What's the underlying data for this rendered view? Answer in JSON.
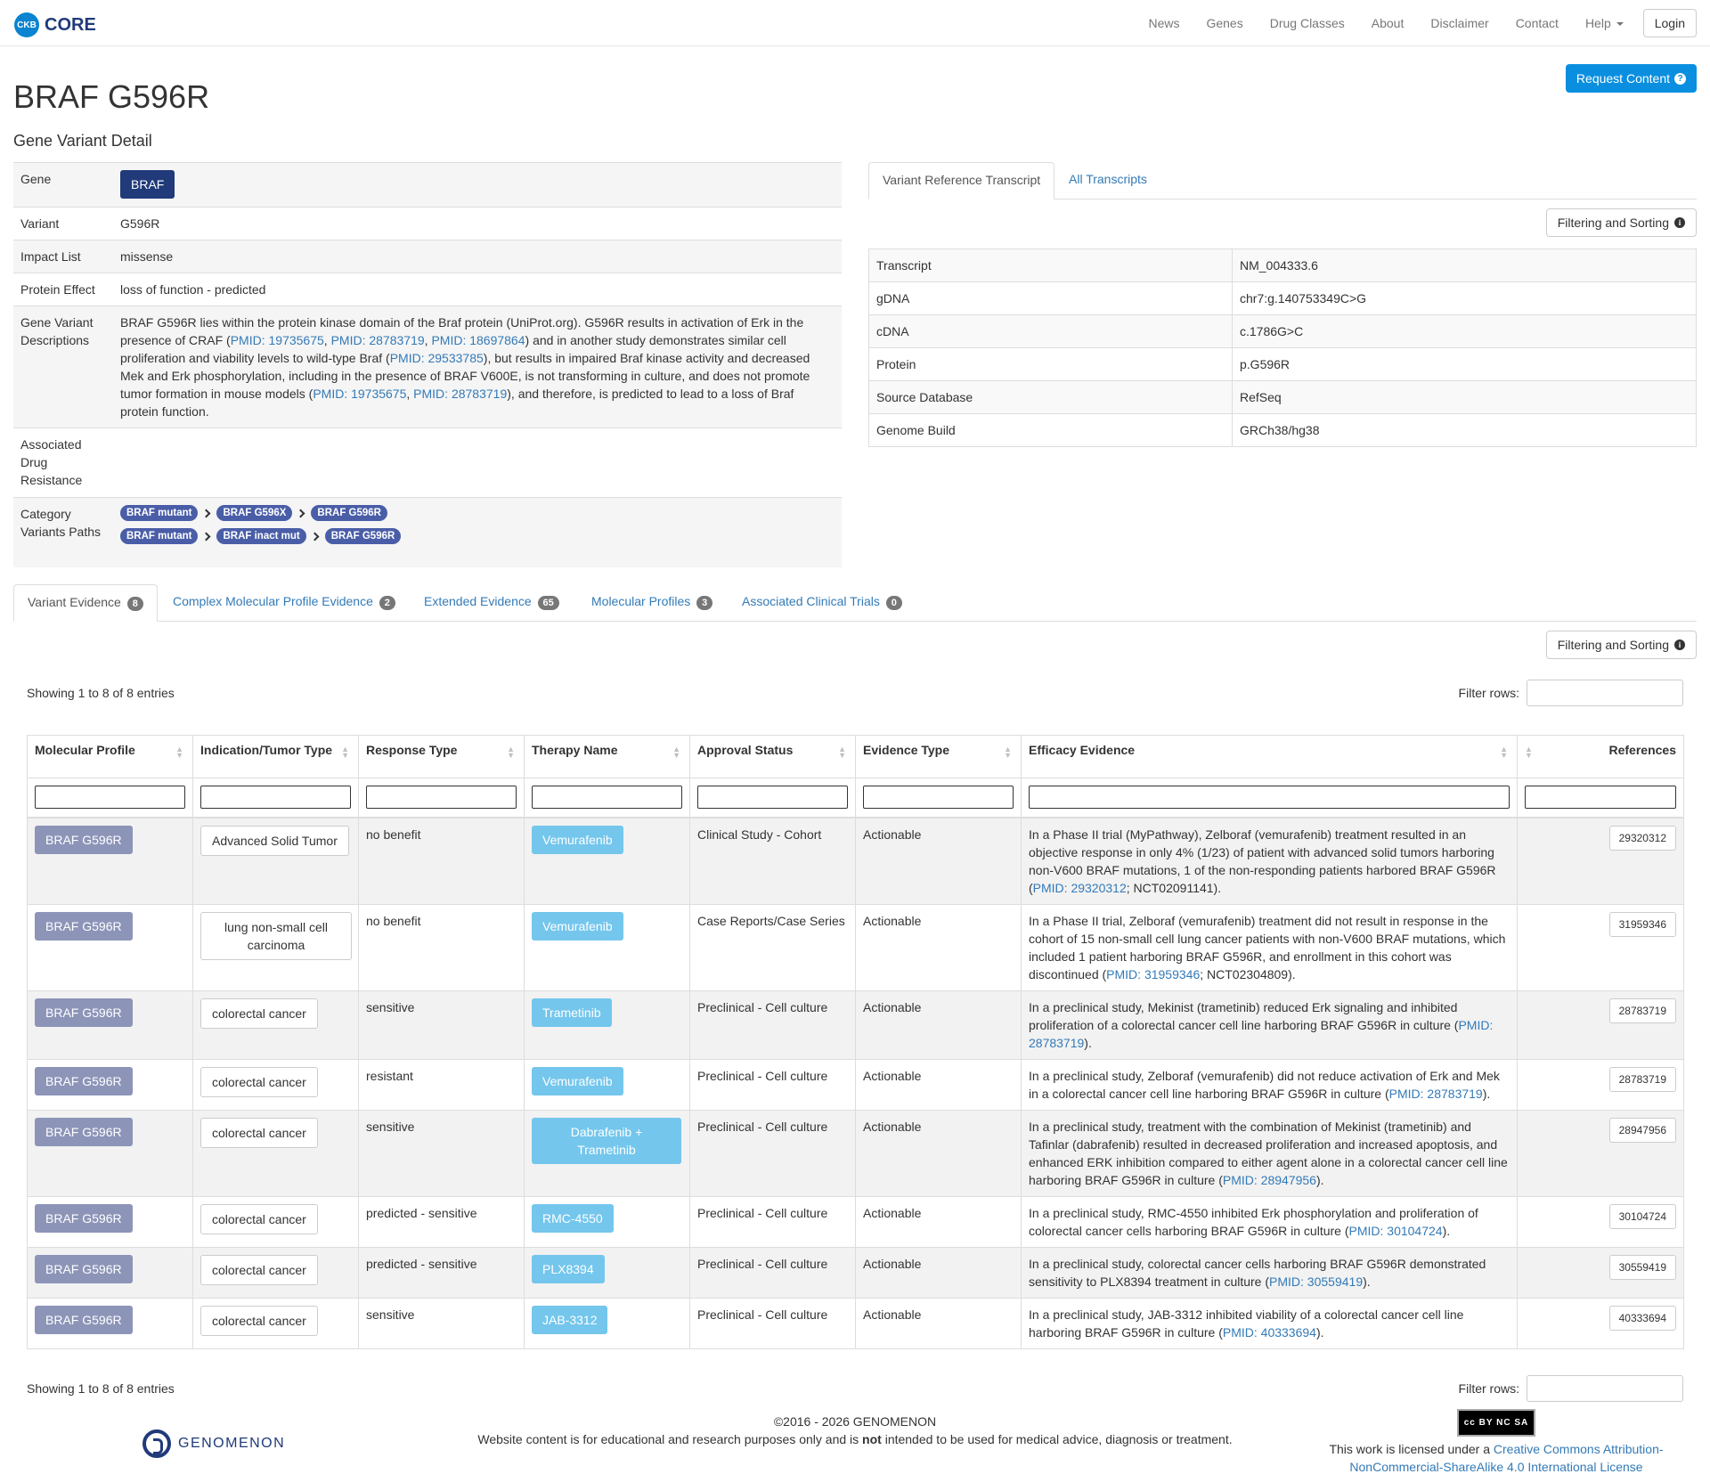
{
  "nav": {
    "logo_short": "CKB",
    "logo_text": "CORE",
    "items": [
      "News",
      "Genes",
      "Drug Classes",
      "About",
      "Disclaimer",
      "Contact",
      "Help"
    ],
    "login": "Login"
  },
  "header": {
    "title": "BRAF G596R",
    "subtitle": "Gene Variant Detail",
    "request_btn": "Request Content"
  },
  "detail": {
    "gene_label": "Gene",
    "gene_value": "BRAF",
    "variant_label": "Variant",
    "variant_value": "G596R",
    "impact_label": "Impact List",
    "impact_value": "missense",
    "protein_label": "Protein Effect",
    "protein_value": "loss of function - predicted",
    "desc_label": "Gene Variant Descriptions",
    "desc_parts": [
      "BRAF G596R lies within the protein kinase domain of the Braf protein (UniProt.org). G596R results in activation of Erk in the presence of CRAF (",
      "PMID: 19735675",
      ", ",
      "PMID: 28783719",
      ", ",
      "PMID: 18697864",
      ") and in another study demonstrates similar cell proliferation and viability levels to wild-type Braf (",
      "PMID: 29533785",
      "), but results in impaired Braf kinase activity and decreased Mek and Erk phosphorylation, including in the presence of BRAF V600E, is not transforming in culture, and does not promote tumor formation in mouse models (",
      "PMID: 19735675",
      ", ",
      "PMID: 28783719",
      "), and therefore, is predicted to lead to a loss of Braf protein function."
    ],
    "resistance_label": "Associated Drug Resistance",
    "category_label": "Category Variants Paths",
    "paths": [
      [
        "BRAF mutant",
        "BRAF G596X",
        "BRAF G596R"
      ],
      [
        "BRAF mutant",
        "BRAF inact mut",
        "BRAF G596R"
      ]
    ]
  },
  "transcript": {
    "tab_active": "Variant Reference Transcript",
    "tab_other": "All Transcripts",
    "filter_btn": "Filtering and Sorting",
    "rows": [
      {
        "label": "Transcript",
        "value": "NM_004333.6"
      },
      {
        "label": "gDNA",
        "value": "chr7:g.140753349C>G"
      },
      {
        "label": "cDNA",
        "value": "c.1786G>C"
      },
      {
        "label": "Protein",
        "value": "p.G596R"
      },
      {
        "label": "Source Database",
        "value": "RefSeq"
      },
      {
        "label": "Genome Build",
        "value": "GRCh38/hg38"
      }
    ]
  },
  "evidence_tabs": [
    {
      "label": "Variant Evidence",
      "count": "8"
    },
    {
      "label": "Complex Molecular Profile Evidence",
      "count": "2"
    },
    {
      "label": "Extended Evidence",
      "count": "65"
    },
    {
      "label": "Molecular Profiles",
      "count": "3"
    },
    {
      "label": "Associated Clinical Trials",
      "count": "0"
    }
  ],
  "evidence": {
    "filter_btn": "Filtering and Sorting",
    "showing": "Showing 1 to 8 of 8 entries",
    "filter_rows_label": "Filter rows:",
    "columns": [
      "Molecular Profile",
      "Indication/Tumor Type",
      "Response Type",
      "Therapy Name",
      "Approval Status",
      "Evidence Type",
      "Efficacy Evidence",
      "References"
    ],
    "rows": [
      {
        "mp": "BRAF G596R",
        "ind": "Advanced Solid Tumor",
        "resp": "no benefit",
        "therapy": "Vemurafenib",
        "approval": "Clinical Study - Cohort",
        "etype": "Actionable",
        "eff": [
          "In a Phase II trial (MyPathway), Zelboraf (vemurafenib) treatment resulted in an objective response in only 4% (1/23) of patient with advanced solid tumors harboring non-V600 BRAF mutations, 1 of the non-responding patients harbored BRAF G596R (",
          "PMID: 29320312",
          "; NCT02091141)."
        ],
        "ref": "29320312"
      },
      {
        "mp": "BRAF G596R",
        "ind": "lung non-small cell carcinoma",
        "resp": "no benefit",
        "therapy": "Vemurafenib",
        "approval": "Case Reports/Case Series",
        "etype": "Actionable",
        "eff": [
          "In a Phase II trial, Zelboraf (vemurafenib) treatment did not result in response in the cohort of 15 non-small cell lung cancer patients with non-V600 BRAF mutations, which included 1 patient harboring BRAF G596R, and enrollment in this cohort was discontinued (",
          "PMID: 31959346",
          "; NCT02304809)."
        ],
        "ref": "31959346"
      },
      {
        "mp": "BRAF G596R",
        "ind": "colorectal cancer",
        "resp": "sensitive",
        "therapy": "Trametinib",
        "approval": "Preclinical - Cell culture",
        "etype": "Actionable",
        "eff": [
          "In a preclinical study, Mekinist (trametinib) reduced Erk signaling and inhibited proliferation of a colorectal cancer cell line harboring BRAF G596R in culture (",
          "PMID: 28783719",
          ")."
        ],
        "ref": "28783719"
      },
      {
        "mp": "BRAF G596R",
        "ind": "colorectal cancer",
        "resp": "resistant",
        "therapy": "Vemurafenib",
        "approval": "Preclinical - Cell culture",
        "etype": "Actionable",
        "eff": [
          "In a preclinical study, Zelboraf (vemurafenib) did not reduce activation of Erk and Mek in a colorectal cancer cell line harboring BRAF G596R in culture (",
          "PMID: 28783719",
          ")."
        ],
        "ref": "28783719"
      },
      {
        "mp": "BRAF G596R",
        "ind": "colorectal cancer",
        "resp": "sensitive",
        "therapy": "Dabrafenib + Trametinib",
        "approval": "Preclinical - Cell culture",
        "etype": "Actionable",
        "eff": [
          "In a preclinical study, treatment with the combination of Mekinist (trametinib) and Tafinlar (dabrafenib) resulted in decreased proliferation and increased apoptosis, and enhanced ERK inhibition compared to either agent alone in a colorectal cancer cell line harboring BRAF G596R in culture (",
          "PMID: 28947956",
          ")."
        ],
        "ref": "28947956"
      },
      {
        "mp": "BRAF G596R",
        "ind": "colorectal cancer",
        "resp": "predicted - sensitive",
        "therapy": "RMC-4550",
        "approval": "Preclinical - Cell culture",
        "etype": "Actionable",
        "eff": [
          "In a preclinical study, RMC-4550 inhibited Erk phosphorylation and proliferation of colorectal cancer cells harboring BRAF G596R in culture (",
          "PMID: 30104724",
          ")."
        ],
        "ref": "30104724"
      },
      {
        "mp": "BRAF G596R",
        "ind": "colorectal cancer",
        "resp": "predicted - sensitive",
        "therapy": "PLX8394",
        "approval": "Preclinical - Cell culture",
        "etype": "Actionable",
        "eff": [
          "In a preclinical study, colorectal cancer cells harboring BRAF G596R demonstrated sensitivity to PLX8394 treatment in culture (",
          "PMID: 30559419",
          ")."
        ],
        "ref": "30559419"
      },
      {
        "mp": "BRAF G596R",
        "ind": "colorectal cancer",
        "resp": "sensitive",
        "therapy": "JAB-3312",
        "approval": "Preclinical - Cell culture",
        "etype": "Actionable",
        "eff": [
          "In a preclinical study, JAB-3312 inhibited viability of a colorectal cancer cell line harboring BRAF G596R in culture (",
          "PMID: 40333694",
          ")."
        ],
        "ref": "40333694"
      }
    ]
  },
  "footer": {
    "logo_text": "GENOMENON",
    "copyright": "©2016 - 2026 GENOMENON",
    "disclaimer_pre": "Website content is for educational and research purposes only and is ",
    "disclaimer_bold": "not",
    "disclaimer_post": " intended to be used for medical advice, diagnosis or treatment.",
    "license_pre": "This work is licensed under a ",
    "license_link": "Creative Commons Attribution-NonCommercial-ShareAlike 4.0 International License",
    "cc_text": "cc BY NC SA"
  }
}
